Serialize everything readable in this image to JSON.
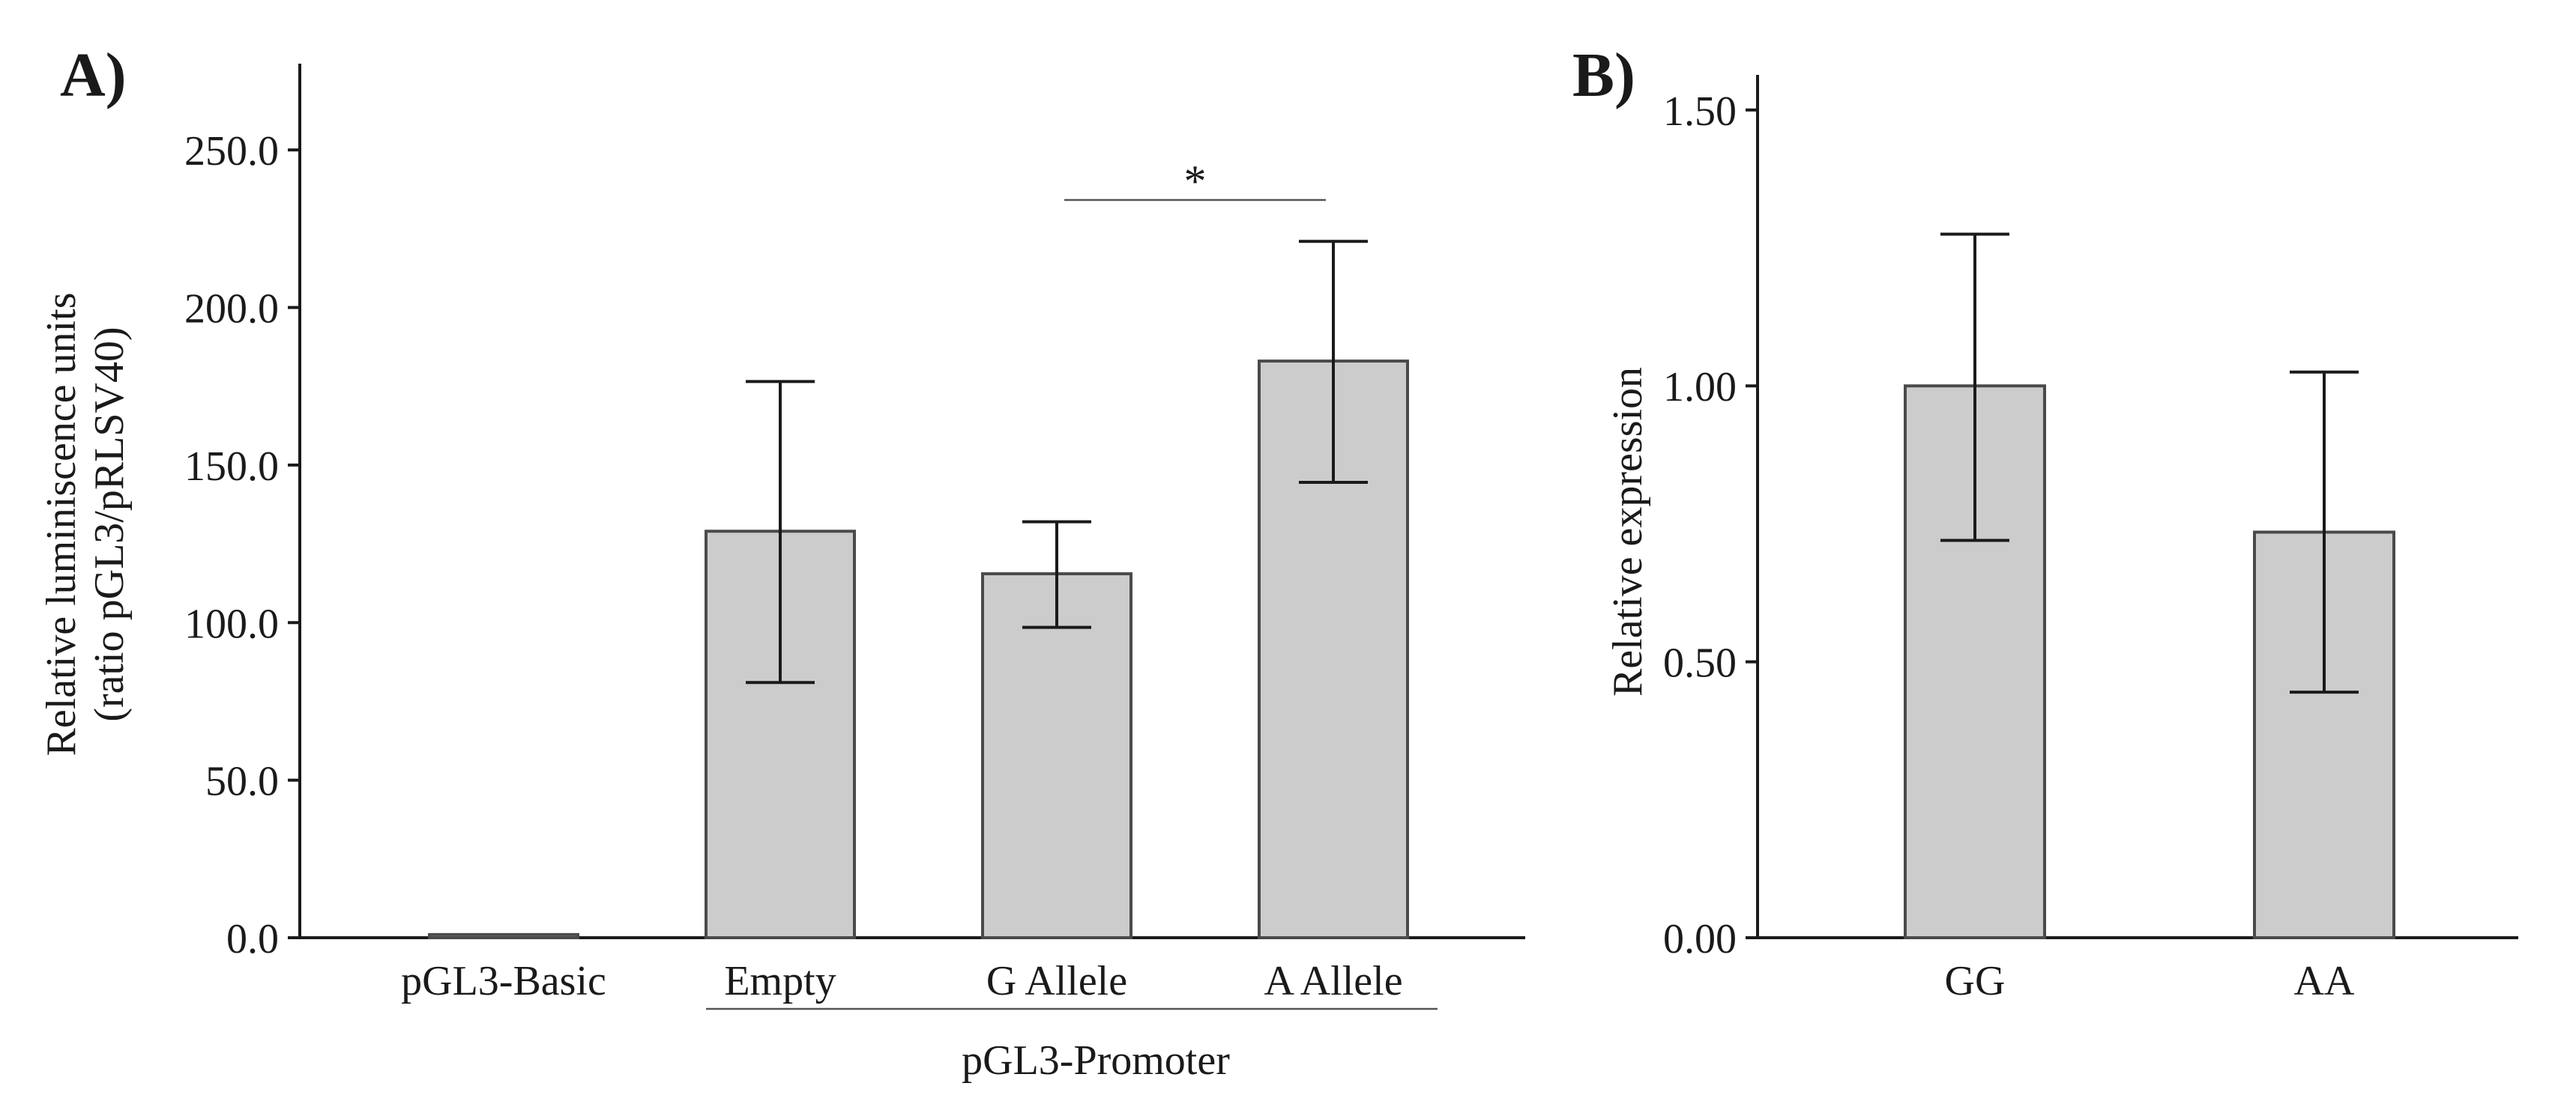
{
  "chart_data": [
    {
      "panel": "A)",
      "type": "bar",
      "ylabel_line1": "Relative luminiscence units",
      "ylabel_line2": "(ratio pGL3/pRLSV40)",
      "ylim": [
        0,
        275
      ],
      "yticks": [
        "0.0",
        "50.0",
        "100.0",
        "150.0",
        "200.0",
        "250.0"
      ],
      "ytick_values": [
        0,
        50,
        100,
        150,
        200,
        250
      ],
      "categories": [
        "pGL3-Basic",
        "Empty",
        "G Allele",
        "A Allele"
      ],
      "values": [
        1.0,
        129,
        115.5,
        183
      ],
      "error_low": [
        1.0,
        81,
        98.5,
        144.5
      ],
      "error_high": [
        1.0,
        176.5,
        132,
        221
      ],
      "group_label": "pGL3-Promoter",
      "group_members": [
        "Empty",
        "G Allele",
        "A Allele"
      ],
      "significance": {
        "between": [
          "G Allele",
          "A Allele"
        ],
        "label": "*"
      }
    },
    {
      "panel": "B)",
      "type": "bar",
      "ylabel": "Relative expression",
      "ylim": [
        0,
        1.55
      ],
      "yticks": [
        "0.00",
        "0.50",
        "1.00",
        "1.50"
      ],
      "ytick_values": [
        0,
        0.5,
        1.0,
        1.5
      ],
      "categories": [
        "GG",
        "AA"
      ],
      "values": [
        1.0,
        0.735
      ],
      "error_low": [
        0.72,
        0.445
      ],
      "error_high": [
        1.275,
        1.025
      ]
    }
  ]
}
